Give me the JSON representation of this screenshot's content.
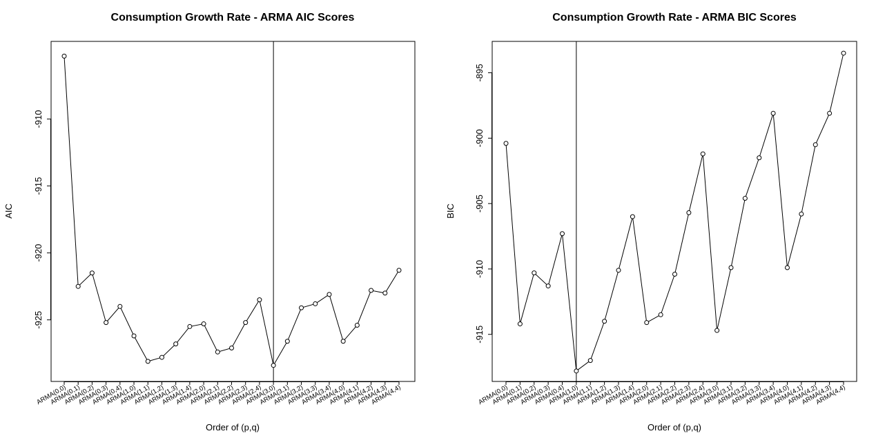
{
  "chart_data": [
    {
      "type": "line",
      "title": "Consumption Growth Rate - ARMA AIC Scores",
      "xlabel": "Order of (p,q)",
      "ylabel": "AIC",
      "categories": [
        "ARMA(0,0)",
        "ARMA(0,1)",
        "ARMA(0,2)",
        "ARMA(0,3)",
        "ARMA(0,4)",
        "ARMA(1,0)",
        "ARMA(1,1)",
        "ARMA(1,2)",
        "ARMA(1,3)",
        "ARMA(1,4)",
        "ARMA(2,0)",
        "ARMA(2,1)",
        "ARMA(2,2)",
        "ARMA(2,3)",
        "ARMA(2,4)",
        "ARMA(3,0)",
        "ARMA(3,1)",
        "ARMA(3,2)",
        "ARMA(3,3)",
        "ARMA(3,4)",
        "ARMA(4,0)",
        "ARMA(4,1)",
        "ARMA(4,2)",
        "ARMA(4,3)",
        "ARMA(4,4)"
      ],
      "values": [
        -905.3,
        -922.5,
        -921.5,
        -925.2,
        -924.0,
        -926.2,
        -928.1,
        -927.8,
        -926.8,
        -925.5,
        -925.3,
        -927.4,
        -927.1,
        -925.2,
        -923.5,
        -928.4,
        -926.6,
        -924.1,
        -923.8,
        -923.1,
        -926.6,
        -925.4,
        -922.8,
        -923.0,
        -921.3
      ],
      "ylim": [
        -929.6,
        -904.2
      ],
      "yticks": [
        -910,
        -915,
        -920,
        -925
      ],
      "vline_category": "ARMA(3,0)",
      "grid": false
    },
    {
      "type": "line",
      "title": "Consumption Growth Rate - ARMA BIC Scores",
      "xlabel": "Order of (p,q)",
      "ylabel": "BIC",
      "categories": [
        "ARMA(0,0)",
        "ARMA(0,1)",
        "ARMA(0,2)",
        "ARMA(0,3)",
        "ARMA(0,4)",
        "ARMA(1,0)",
        "ARMA(1,1)",
        "ARMA(1,2)",
        "ARMA(1,3)",
        "ARMA(1,4)",
        "ARMA(2,0)",
        "ARMA(2,1)",
        "ARMA(2,2)",
        "ARMA(2,3)",
        "ARMA(2,4)",
        "ARMA(3,0)",
        "ARMA(3,1)",
        "ARMA(3,2)",
        "ARMA(3,3)",
        "ARMA(3,4)",
        "ARMA(4,0)",
        "ARMA(4,1)",
        "ARMA(4,2)",
        "ARMA(4,3)",
        "ARMA(4,4)"
      ],
      "values": [
        -900.4,
        -914.2,
        -910.3,
        -911.3,
        -907.3,
        -917.8,
        -917.0,
        -914.0,
        -910.1,
        -906.0,
        -914.1,
        -913.5,
        -910.4,
        -905.7,
        -901.2,
        -914.7,
        -909.9,
        -904.6,
        -901.5,
        -898.1,
        -909.9,
        -905.8,
        -900.5,
        -898.1,
        -893.5
      ],
      "ylim": [
        -918.6,
        -892.6
      ],
      "yticks": [
        -895,
        -900,
        -905,
        -910,
        -915
      ],
      "vline_category": "ARMA(1,0)",
      "grid": false
    }
  ]
}
